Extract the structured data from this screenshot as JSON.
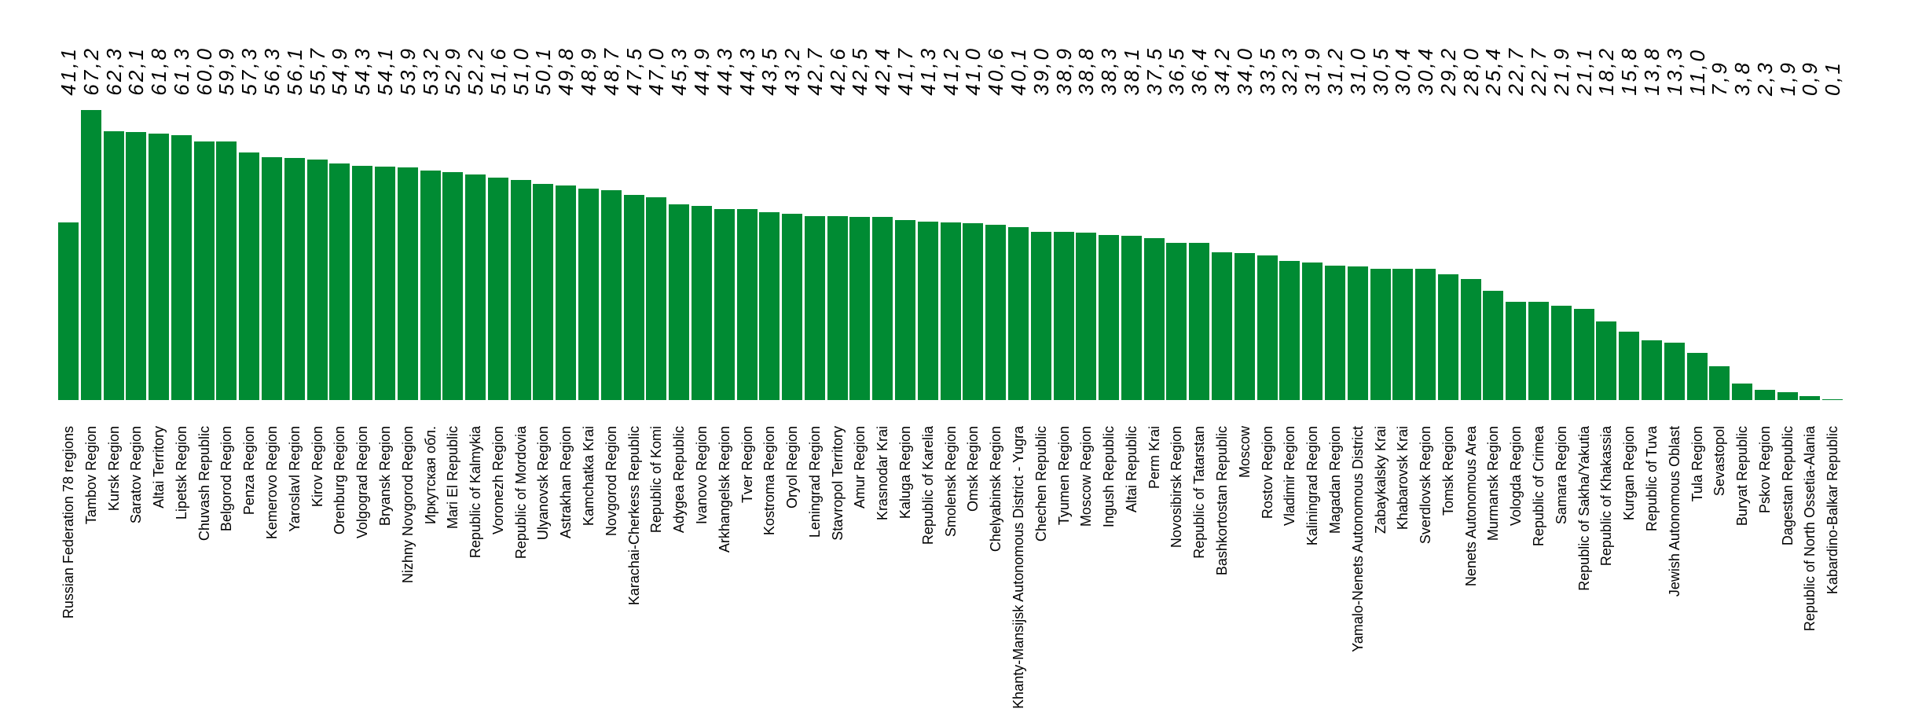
{
  "chart_data": {
    "type": "bar",
    "title": "",
    "xlabel": "",
    "ylabel": "",
    "ylim": [
      0,
      67.2
    ],
    "grid": false,
    "legend_position": "none",
    "bar_color": "#008B33",
    "background_color": "#FFFFFF",
    "value_label_position": "top-rotated-90",
    "category_label_rotation": 90,
    "decimal_separator": ",",
    "categories": [
      "Russian Federation 78 regions",
      "Tambov Region",
      "Kursk Region",
      "Saratov Region",
      "Altai Territory",
      "Lipetsk Region",
      "Chuvash Republic",
      "Belgorod Region",
      "Penza Region",
      "Kemerovo Region",
      "Yaroslavl Region",
      "Kirov Region",
      "Orenburg Region",
      "Volgograd Region",
      "Bryansk Region",
      "Nizhny Novgorod Region",
      "Иркутская обл.",
      "Mari El Republic",
      "Republic of Kalmykia",
      "Voronezh Region",
      "Republic of Mordovia",
      "Ulyanovsk Region",
      "Astrakhan Region",
      "Kamchatka Krai",
      "Novgorod Region",
      "Karachai-Cherkess Republic",
      "Republic of Komi",
      "Adygea Republic",
      "Ivanovo Region",
      "Arkhangelsk Region",
      "Tver Region",
      "Kostroma Region",
      "Oryol Region",
      "Leningrad Region",
      "Stavropol Territory",
      "Amur Region",
      "Krasnodar Krai",
      "Kaluga Region",
      "Republic of Karelia",
      "Smolensk Region",
      "Omsk Region",
      "Chelyabinsk Region",
      "Khanty-Mansijsk Autonomous District - Yugra",
      "Chechen Republic",
      "Tyumen Region",
      "Moscow Region",
      "Ingush Republic",
      "Altai Republic",
      "Perm Krai",
      "Novosibirsk Region",
      "Republic of Tatarstan",
      "Bashkortostan Republic",
      "Moscow",
      "Rostov Region",
      "Vladimir Region",
      "Kaliningrad Region",
      "Magadan Region",
      "Yamalo-Nenets Autonomous District",
      "Zabaykalsky Krai",
      "Khabarovsk Krai",
      "Sverdlovsk Region",
      "Tomsk Region",
      "Nenets Autonomous Area",
      "Murmansk Region",
      "Vologda Region",
      "Republic of Crimea",
      "Samara Region",
      "Republic of Sakha/Yakutia",
      "Republic of Khakassia",
      "Kurgan Region",
      "Republic of Tuva",
      "Jewish Autonomous Oblast",
      "Tula Region",
      "Sevastopol",
      "Buryat Republic",
      "Pskov Region",
      "Dagestan Republic",
      "Republic of North Ossetia-Alania",
      "Kabardino-Balkar Republic"
    ],
    "values": [
      41.1,
      67.2,
      62.3,
      62.1,
      61.8,
      61.3,
      60.0,
      59.9,
      57.3,
      56.3,
      56.1,
      55.7,
      54.9,
      54.3,
      54.1,
      53.9,
      53.2,
      52.9,
      52.2,
      51.6,
      51.0,
      50.1,
      49.8,
      48.9,
      48.7,
      47.5,
      47.0,
      45.3,
      44.9,
      44.3,
      44.3,
      43.5,
      43.2,
      42.7,
      42.6,
      42.5,
      42.4,
      41.7,
      41.3,
      41.2,
      41.0,
      40.6,
      40.1,
      39.0,
      38.9,
      38.8,
      38.3,
      38.1,
      37.5,
      36.5,
      36.4,
      34.2,
      34.0,
      33.5,
      32.3,
      31.9,
      31.2,
      31.0,
      30.5,
      30.4,
      30.4,
      29.2,
      28.0,
      25.4,
      22.7,
      22.7,
      21.9,
      21.1,
      18.2,
      15.8,
      13.8,
      13.3,
      11.0,
      7.9,
      3.8,
      2.3,
      1.9,
      0.9,
      0.1
    ],
    "value_labels": [
      "41,1",
      "67,2",
      "62,3",
      "62,1",
      "61,8",
      "61,3",
      "60,0",
      "59,9",
      "57,3",
      "56,3",
      "56,1",
      "55,7",
      "54,9",
      "54,3",
      "54,1",
      "53,9",
      "53,2",
      "52,9",
      "52,2",
      "51,6",
      "51,0",
      "50,1",
      "49,8",
      "48,9",
      "48,7",
      "47,5",
      "47,0",
      "45,3",
      "44,9",
      "44,3",
      "44,3",
      "43,5",
      "43,2",
      "42,7",
      "42,6",
      "42,5",
      "42,4",
      "41,7",
      "41,3",
      "41,2",
      "41,0",
      "40,6",
      "40,1",
      "39,0",
      "38,9",
      "38,8",
      "38,3",
      "38,1",
      "37,5",
      "36,5",
      "36,4",
      "34,2",
      "34,0",
      "33,5",
      "32,3",
      "31,9",
      "31,2",
      "31,0",
      "30,5",
      "30,4",
      "30,4",
      "29,2",
      "28,0",
      "25,4",
      "22,7",
      "22,7",
      "21,9",
      "21,1",
      "18,2",
      "15,8",
      "13,8",
      "13,3",
      "11,0",
      "7,9",
      "3,8",
      "2,3",
      "1,9",
      "0,9",
      "0,1"
    ]
  }
}
